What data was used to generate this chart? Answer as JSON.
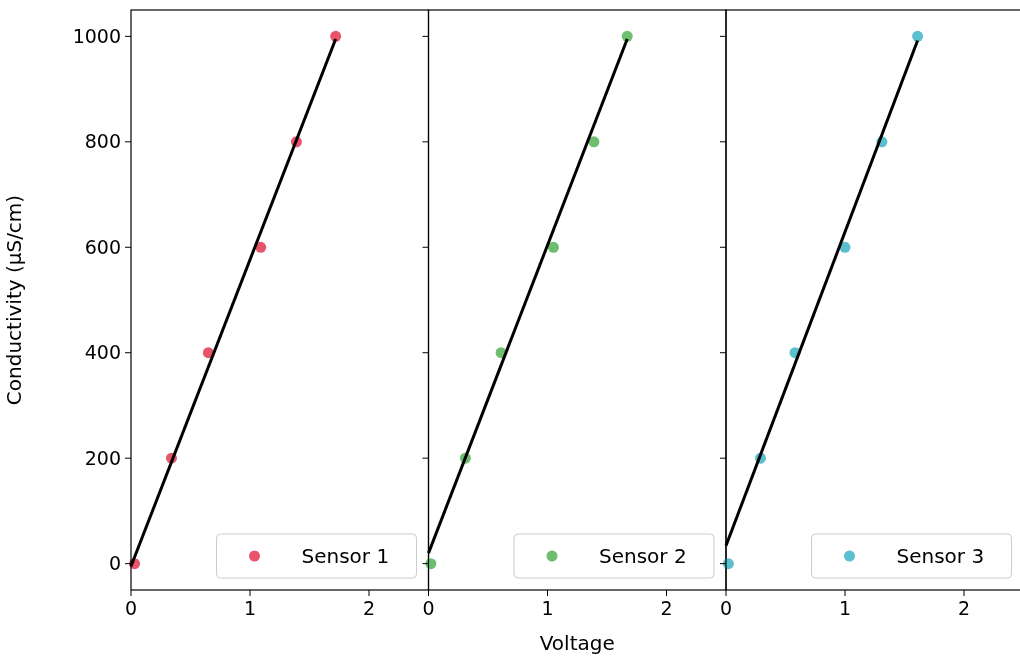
{
  "chart_data": [
    {
      "type": "scatter",
      "ylabel": "Conductivity (µS/cm)",
      "xlim": [
        0,
        2.5
      ],
      "xticks": [
        0,
        1,
        2
      ],
      "ylim": [
        -50,
        1050
      ],
      "yticks": [
        0,
        200,
        400,
        600,
        800,
        1000
      ],
      "legend": "bottom right",
      "series": [
        {
          "name": "Sensor 1",
          "color": "#e8546a",
          "marker": "circle",
          "x": [
            0.03,
            0.34,
            0.65,
            1.09,
            1.39,
            1.72
          ],
          "values": [
            0,
            200,
            400,
            600,
            800,
            1000
          ]
        },
        {
          "type": "line",
          "color": "#000000",
          "x": [
            0,
            1.72
          ],
          "values": [
            -5,
            995
          ]
        }
      ]
    },
    {
      "type": "scatter",
      "xlabel": "Voltage",
      "xlim": [
        0,
        2.5
      ],
      "xticks": [
        0,
        1,
        2
      ],
      "ylim": [
        -50,
        1050
      ],
      "yticks": [
        0,
        200,
        400,
        600,
        800,
        1000
      ],
      "tick_labels": "x",
      "legend": "bottom right",
      "series": [
        {
          "name": "Sensor 2",
          "color": "#6dbf6f",
          "marker": "circle",
          "x": [
            0.02,
            0.31,
            0.61,
            1.05,
            1.39,
            1.67
          ],
          "values": [
            0,
            200,
            400,
            600,
            800,
            1000
          ]
        },
        {
          "type": "line",
          "color": "#000000",
          "x": [
            0,
            1.67
          ],
          "values": [
            20,
            995
          ]
        }
      ]
    },
    {
      "type": "scatter",
      "xlim": [
        0,
        2.5
      ],
      "xticks": [
        0,
        1,
        2
      ],
      "ylim": [
        -50,
        1050
      ],
      "yticks": [
        0,
        200,
        400,
        600,
        800,
        1000
      ],
      "tick_labels": "x",
      "legend": "bottom right",
      "series": [
        {
          "name": "Sensor 3",
          "color": "#5bbfd0",
          "marker": "circle",
          "x": [
            0.02,
            0.29,
            0.58,
            1.0,
            1.31,
            1.61
          ],
          "values": [
            0,
            200,
            400,
            600,
            800,
            1000
          ]
        },
        {
          "type": "line",
          "color": "#000000",
          "x": [
            0,
            1.61
          ],
          "values": [
            34,
            992
          ]
        }
      ]
    }
  ]
}
